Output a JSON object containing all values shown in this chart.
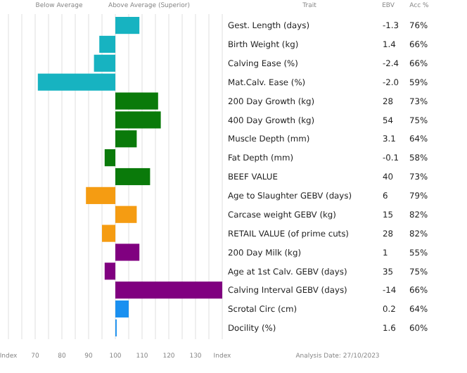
{
  "chart_data": {
    "type": "bar",
    "orientation": "horizontal",
    "categories": [
      "Gest. Length (days)",
      "Birth Weight (kg)",
      "Calving Ease (%)",
      "Mat.Calv. Ease (%)",
      "200 Day Growth (kg)",
      "400 Day Growth (kg)",
      "Muscle Depth (mm)",
      "Fat Depth (mm)",
      "BEEF VALUE",
      "Age to Slaughter GEBV (days)",
      "Carcase weight GEBV (kg)",
      "RETAIL VALUE (of prime cuts)",
      "200 Day Milk (kg)",
      "Age at 1st Calv. GEBV (days)",
      "Calving Interval GEBV (days)",
      "Scrotal Circ (cm)",
      "Docility (%)"
    ],
    "base": [
      100,
      100,
      100,
      100,
      100,
      100,
      100,
      100,
      100,
      100,
      100,
      100,
      100,
      100,
      100,
      100,
      100
    ],
    "values": [
      9,
      -6,
      -8,
      -29,
      16,
      17,
      8,
      -4,
      13,
      -11,
      8,
      -5,
      9,
      -4,
      40,
      5,
      0.5
    ],
    "colors": [
      "#17b3c1",
      "#17b3c1",
      "#17b3c1",
      "#17b3c1",
      "#0a7a0a",
      "#0a7a0a",
      "#0a7a0a",
      "#0a7a0a",
      "#0a7a0a",
      "#f59c12",
      "#f59c12",
      "#f59c12",
      "#800080",
      "#800080",
      "#800080",
      "#1a90f0",
      "#1a90f0"
    ],
    "xlim": [
      60,
      140
    ],
    "xticks": [
      {
        "value": 60,
        "label": "Index"
      },
      {
        "value": 65,
        "label": null
      },
      70,
      {
        "value": 75,
        "label": null
      },
      80,
      {
        "value": 85,
        "label": null
      },
      90,
      {
        "value": 95,
        "label": null
      },
      100,
      {
        "value": 105,
        "label": null
      },
      110,
      {
        "value": 115,
        "label": null
      },
      120,
      {
        "value": 125,
        "label": null
      },
      130,
      {
        "value": 135,
        "label": null
      },
      {
        "value": 140,
        "label": "Index"
      }
    ],
    "grid": "x",
    "annotations": [
      "Below Average",
      "Above Average (Superior)",
      "Trait",
      "EBV",
      "Acc %",
      "Analysis Date: 27/10/2023",
      "-1.3",
      "76%",
      "1.4",
      "66%",
      "-2.4",
      "66%",
      "-2.0",
      "59%",
      "28",
      "73%",
      "54",
      "75%",
      "3.1",
      "64%",
      "-0.1",
      "58%",
      "40",
      "73%",
      "6",
      "79%",
      "15",
      "82%",
      "28",
      "82%",
      "1",
      "55%",
      "35",
      "75%",
      "-14",
      "66%",
      "0.2",
      "64%",
      "1.6",
      "60%"
    ]
  }
}
